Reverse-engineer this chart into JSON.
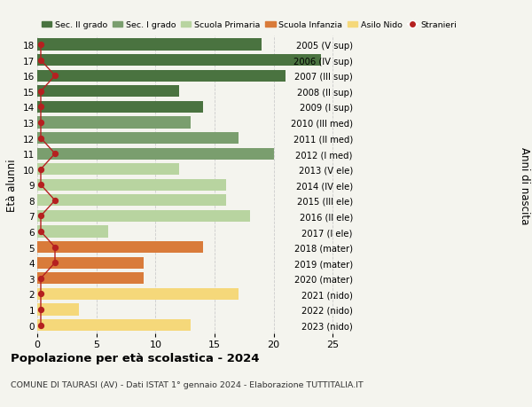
{
  "ages": [
    18,
    17,
    16,
    15,
    14,
    13,
    12,
    11,
    10,
    9,
    8,
    7,
    6,
    5,
    4,
    3,
    2,
    1,
    0
  ],
  "right_labels": [
    "2005 (V sup)",
    "2006 (IV sup)",
    "2007 (III sup)",
    "2008 (II sup)",
    "2009 (I sup)",
    "2010 (III med)",
    "2011 (II med)",
    "2012 (I med)",
    "2013 (V ele)",
    "2014 (IV ele)",
    "2015 (III ele)",
    "2016 (II ele)",
    "2017 (I ele)",
    "2018 (mater)",
    "2019 (mater)",
    "2020 (mater)",
    "2021 (nido)",
    "2022 (nido)",
    "2023 (nido)"
  ],
  "bar_values": [
    19,
    24,
    21,
    12,
    14,
    13,
    17,
    20,
    12,
    16,
    16,
    18,
    6,
    14,
    9,
    9,
    17,
    3.5,
    13
  ],
  "bar_colors": [
    "#4a7340",
    "#4a7340",
    "#4a7340",
    "#4a7340",
    "#4a7340",
    "#7a9e6e",
    "#7a9e6e",
    "#7a9e6e",
    "#b8d4a0",
    "#b8d4a0",
    "#b8d4a0",
    "#b8d4a0",
    "#b8d4a0",
    "#d97b3a",
    "#d97b3a",
    "#d97b3a",
    "#f5d87a",
    "#f5d87a",
    "#f5d87a"
  ],
  "stranieri_values": [
    0.3,
    0.3,
    1.5,
    0.3,
    0.3,
    0.3,
    0.3,
    1.5,
    0.3,
    0.3,
    1.5,
    0.3,
    0.3,
    1.5,
    1.5,
    0.3,
    0.3,
    0.3,
    0.3
  ],
  "title": "Popolazione per età scolastica - 2024",
  "subtitle": "COMUNE DI TAURASI (AV) - Dati ISTAT 1° gennaio 2024 - Elaborazione TUTTITALIA.IT",
  "ylabel": "Età alunni",
  "right_ylabel": "Anni di nascita",
  "xlim": [
    0,
    27
  ],
  "xticks": [
    0,
    5,
    10,
    15,
    20,
    25
  ],
  "legend_labels": [
    "Sec. II grado",
    "Sec. I grado",
    "Scuola Primaria",
    "Scuola Infanzia",
    "Asilo Nido",
    "Stranieri"
  ],
  "legend_colors": [
    "#4a7340",
    "#7a9e6e",
    "#b8d4a0",
    "#d97b3a",
    "#f5d87a",
    "#b52020"
  ],
  "bg_color": "#f4f4ee",
  "bar_height": 0.75,
  "grid_color": "#cccccc",
  "stranieri_color": "#b52020",
  "stranieri_line_color": "#b52020"
}
